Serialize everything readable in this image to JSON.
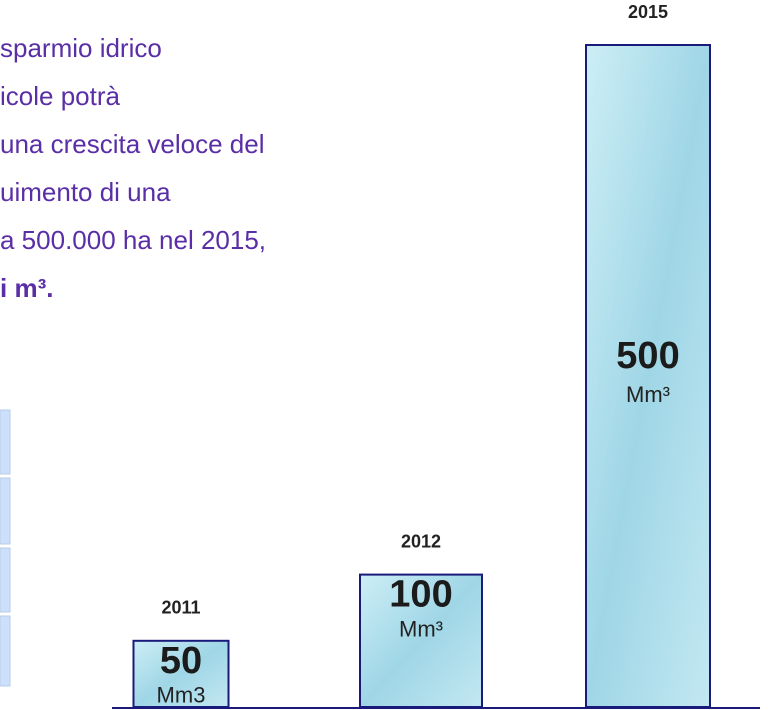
{
  "text_lines": [
    "sparmio idrico",
    "icole potrà",
    "una crescita veloce del",
    "uimento di una",
    "a 500.000 ha nel 2015,",
    "i m³."
  ],
  "chart_data": {
    "type": "bar",
    "categories": [
      "2011",
      "2012",
      "2015"
    ],
    "values": [
      50,
      100,
      500
    ],
    "unit_labels": [
      "Mm3",
      "Mm³",
      "Mm³"
    ],
    "color": "#a9dcea"
  }
}
